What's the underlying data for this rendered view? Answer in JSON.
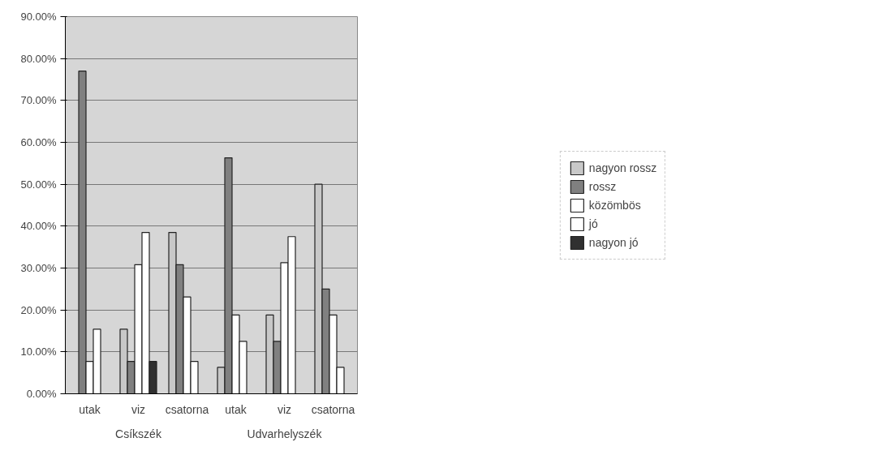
{
  "chart_data": {
    "type": "bar",
    "categories": [
      "utak",
      "viz",
      "csatorna",
      "utak",
      "viz",
      "csatorna"
    ],
    "annotations": [
      "Csíkszék",
      "Udvarhelyszék"
    ],
    "series": [
      {
        "name": "nagyon rossz",
        "color": "#c8c8c8",
        "values": [
          null,
          15.4,
          38.5,
          6.3,
          18.8,
          50
        ]
      },
      {
        "name": "rossz",
        "color": "#808080",
        "values": [
          77,
          7.7,
          30.8,
          56.3,
          12.5,
          25
        ]
      },
      {
        "name": "közömbös",
        "color": "#ffffff",
        "values": [
          7.7,
          30.8,
          23.1,
          18.8,
          31.3,
          18.8
        ]
      },
      {
        "name": "jó",
        "color": "#ffffff",
        "values": [
          15.4,
          38.5,
          7.7,
          12.5,
          37.5,
          6.3
        ]
      },
      {
        "name": "nagyon jó",
        "color": "#303030",
        "values": [
          null,
          7.7,
          null,
          null,
          null,
          null
        ]
      }
    ],
    "ylim": [
      0,
      90
    ],
    "yticks": [
      {
        "value": 0,
        "label": "0.00%"
      },
      {
        "value": 10,
        "label": "10.00%"
      },
      {
        "value": 20,
        "label": "20.00%"
      },
      {
        "value": 30,
        "label": "30.00%"
      },
      {
        "value": 40,
        "label": "40.00%"
      },
      {
        "value": 50,
        "label": "50.00%"
      },
      {
        "value": 60,
        "label": "60.00%"
      },
      {
        "value": 70,
        "label": "70.00%"
      },
      {
        "value": 80,
        "label": "80.00%"
      },
      {
        "value": 90,
        "label": "90.00%"
      }
    ],
    "grid": "y",
    "legend": "right"
  }
}
